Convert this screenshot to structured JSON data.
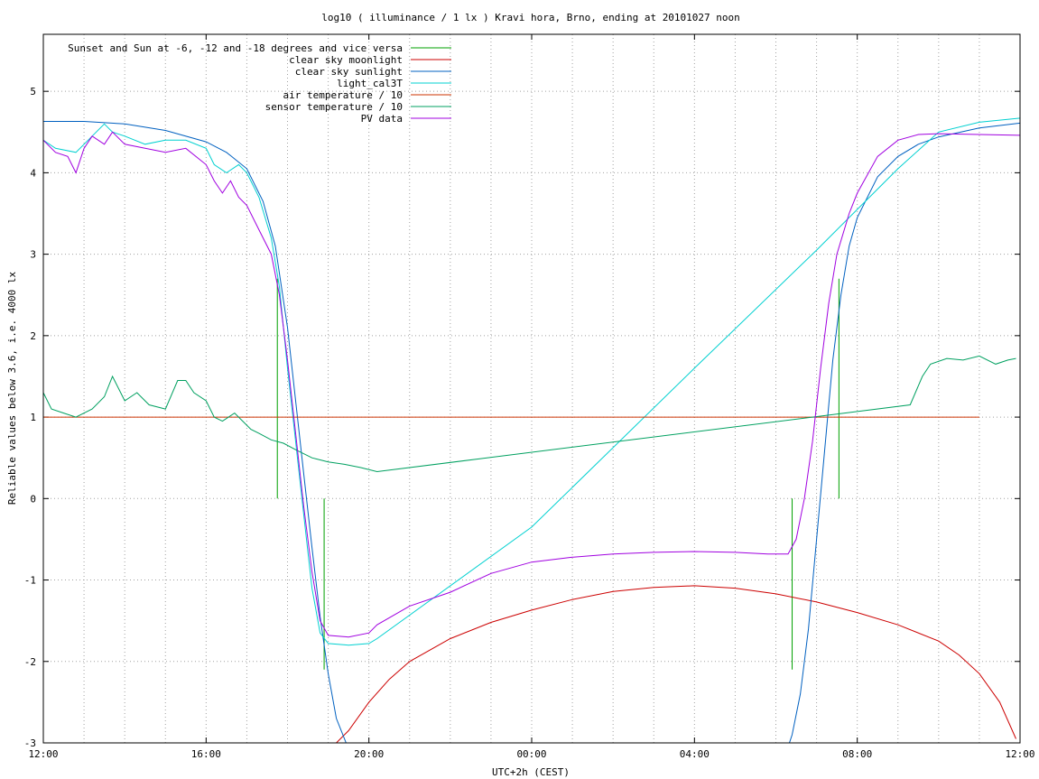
{
  "chart_data": {
    "type": "line",
    "title": "log10 ( illuminance / 1 lx ) Kravi hora, Brno, ending at 20101027 noon",
    "xlabel": "UTC+2h (CEST)",
    "ylabel": "Reliable values below 3.6, i.e. 4000 lx",
    "xlim": [
      12,
      36
    ],
    "ylim": [
      -3,
      5.7
    ],
    "x_ticks": [
      {
        "v": 12,
        "label": "12:00"
      },
      {
        "v": 16,
        "label": "16:00"
      },
      {
        "v": 20,
        "label": "20:00"
      },
      {
        "v": 24,
        "label": "00:00"
      },
      {
        "v": 28,
        "label": "04:00"
      },
      {
        "v": 32,
        "label": "08:00"
      },
      {
        "v": 36,
        "label": "12:00"
      }
    ],
    "x_grid_step_hours": 1,
    "y_ticks": [
      {
        "v": -3,
        "label": "-3"
      },
      {
        "v": -2,
        "label": "-2"
      },
      {
        "v": -1,
        "label": "-1"
      },
      {
        "v": 0,
        "label": "0"
      },
      {
        "v": 1,
        "label": "1"
      },
      {
        "v": 2,
        "label": "2"
      },
      {
        "v": 3,
        "label": "3"
      },
      {
        "v": 4,
        "label": "4"
      },
      {
        "v": 5,
        "label": "5"
      }
    ],
    "grid": true,
    "legend_position": "top-left",
    "series": [
      {
        "name": "Sunset and Sun at -6, -12 and -18 degrees and vice versa",
        "color": "#00a000",
        "kind": "spikes",
        "spikes": [
          [
            17.75,
            2.7
          ],
          [
            18.35,
            0.0
          ],
          [
            18.9,
            -2.1
          ],
          [
            19.5,
            0.0
          ],
          [
            29.75,
            0.0
          ],
          [
            30.4,
            -2.1
          ],
          [
            31.0,
            0.0
          ],
          [
            31.55,
            2.7
          ]
        ]
      },
      {
        "name": "clear sky moonlight",
        "color": "#cc0000",
        "x": [
          19.2,
          19.5,
          20.0,
          20.5,
          21.0,
          22.0,
          23.0,
          24.0,
          25.0,
          26.0,
          27.0,
          28.0,
          29.0,
          30.0,
          31.0,
          32.0,
          33.0,
          34.0,
          34.5,
          35.0,
          35.5,
          35.9
        ],
        "y": [
          -3.0,
          -2.85,
          -2.5,
          -2.22,
          -2.0,
          -1.72,
          -1.52,
          -1.37,
          -1.24,
          -1.14,
          -1.09,
          -1.07,
          -1.1,
          -1.17,
          -1.27,
          -1.4,
          -1.55,
          -1.75,
          -1.92,
          -2.15,
          -2.5,
          -2.95
        ]
      },
      {
        "name": "clear sky sunlight",
        "color": "#0060c0",
        "x": [
          12.0,
          13.0,
          14.0,
          15.0,
          16.0,
          16.5,
          17.0,
          17.4,
          17.7,
          18.0,
          18.2,
          18.4,
          18.6,
          18.8,
          19.0,
          19.2,
          19.4,
          19.6,
          30.2,
          30.4,
          30.6,
          30.8,
          31.0,
          31.2,
          31.4,
          31.6,
          31.8,
          32.0,
          32.5,
          33.0,
          33.5,
          34.0,
          35.0,
          36.0
        ],
        "y": [
          4.63,
          4.63,
          4.6,
          4.52,
          4.38,
          4.25,
          4.05,
          3.65,
          3.1,
          2.1,
          1.2,
          0.3,
          -0.6,
          -1.45,
          -2.15,
          -2.7,
          -2.95,
          -3.2,
          -3.2,
          -2.9,
          -2.4,
          -1.6,
          -0.5,
          0.6,
          1.7,
          2.5,
          3.1,
          3.45,
          3.95,
          4.2,
          4.35,
          4.44,
          4.55,
          4.61
        ]
      },
      {
        "name": "light_cal3T",
        "color": "#00d0d0",
        "x": [
          12.0,
          12.3,
          12.8,
          13.2,
          13.5,
          13.7,
          14.0,
          14.5,
          15.0,
          15.5,
          16.0,
          16.2,
          16.5,
          16.8,
          17.0,
          17.3,
          17.6,
          17.8,
          18.0,
          18.2,
          18.4,
          18.6,
          18.8,
          19.0,
          19.5,
          20.0,
          20.2,
          24.0,
          28.0,
          31.0,
          33.0,
          34.0,
          35.0,
          36.0
        ],
        "y": [
          4.4,
          4.3,
          4.25,
          4.45,
          4.6,
          4.5,
          4.45,
          4.35,
          4.4,
          4.4,
          4.3,
          4.1,
          4.0,
          4.1,
          4.0,
          3.7,
          3.2,
          2.6,
          1.6,
          0.7,
          -0.2,
          -1.1,
          -1.65,
          -1.78,
          -1.8,
          -1.78,
          -1.72,
          -0.35,
          1.6,
          3.05,
          4.05,
          4.5,
          4.62,
          4.67
        ]
      },
      {
        "name": "air temperature / 10",
        "color": "#cc3300",
        "x": [
          12.0,
          35.0
        ],
        "y": [
          1.0,
          1.0
        ]
      },
      {
        "name": "sensor temperature / 10",
        "color": "#00a060",
        "x": [
          12.0,
          12.2,
          12.5,
          12.8,
          13.2,
          13.5,
          13.7,
          14.0,
          14.3,
          14.6,
          15.0,
          15.3,
          15.5,
          15.7,
          16.0,
          16.2,
          16.4,
          16.7,
          16.9,
          17.1,
          17.3,
          17.6,
          17.9,
          18.2,
          18.6,
          19.0,
          19.4,
          19.8,
          20.2,
          33.3,
          33.6,
          33.8,
          34.2,
          34.6,
          35.0,
          35.4,
          35.7,
          35.9
        ],
        "y": [
          1.3,
          1.1,
          1.05,
          1.0,
          1.1,
          1.25,
          1.5,
          1.2,
          1.3,
          1.15,
          1.1,
          1.45,
          1.45,
          1.3,
          1.2,
          1.0,
          0.95,
          1.05,
          0.95,
          0.85,
          0.8,
          0.72,
          0.68,
          0.6,
          0.5,
          0.45,
          0.42,
          0.38,
          0.33,
          1.15,
          1.5,
          1.65,
          1.72,
          1.7,
          1.75,
          1.65,
          1.7,
          1.72
        ]
      },
      {
        "name": "PV data",
        "color": "#a000e0",
        "x": [
          12.0,
          12.3,
          12.6,
          12.8,
          13.0,
          13.2,
          13.5,
          13.7,
          14.0,
          14.5,
          15.0,
          15.5,
          16.0,
          16.2,
          16.4,
          16.6,
          16.8,
          17.0,
          17.3,
          17.6,
          17.8,
          18.0,
          18.2,
          18.4,
          18.6,
          18.8,
          19.0,
          19.5,
          20.0,
          20.2,
          21.0,
          22.0,
          23.0,
          24.0,
          25.0,
          26.0,
          27.0,
          28.0,
          29.0,
          29.8,
          30.3,
          30.5,
          30.7,
          30.9,
          31.1,
          31.3,
          31.5,
          31.8,
          32.0,
          32.5,
          33.0,
          33.5,
          34.0,
          35.0,
          36.0
        ],
        "y": [
          4.4,
          4.25,
          4.2,
          4.0,
          4.3,
          4.45,
          4.35,
          4.5,
          4.35,
          4.3,
          4.25,
          4.3,
          4.1,
          3.9,
          3.75,
          3.9,
          3.7,
          3.6,
          3.3,
          3.0,
          2.5,
          1.7,
          0.8,
          -0.1,
          -0.9,
          -1.5,
          -1.68,
          -1.7,
          -1.65,
          -1.55,
          -1.32,
          -1.15,
          -0.92,
          -0.78,
          -0.72,
          -0.68,
          -0.66,
          -0.65,
          -0.66,
          -0.68,
          -0.68,
          -0.5,
          0.0,
          0.7,
          1.6,
          2.4,
          3.0,
          3.5,
          3.75,
          4.2,
          4.4,
          4.47,
          4.48,
          4.47,
          4.46
        ]
      }
    ]
  }
}
